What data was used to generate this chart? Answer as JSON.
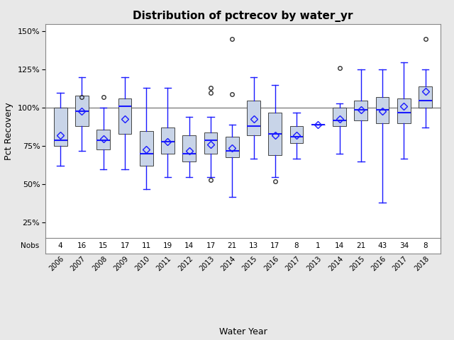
{
  "title": "Distribution of pctrecov by water_yr",
  "xlabel": "Water Year",
  "ylabel": "Pct Recovery",
  "ylim": [
    15,
    155
  ],
  "yticks": [
    25,
    50,
    75,
    100,
    125,
    150
  ],
  "ytick_labels": [
    "25%",
    "50%",
    "75%",
    "100%",
    "125%",
    "150%"
  ],
  "ref_line": 100,
  "background_color": "#e8e8e8",
  "plot_bg": "#ffffff",
  "box_fill": "#c8d4e8",
  "box_edge": "#444444",
  "whisker_color": "#1a1aff",
  "median_color": "#1a1aff",
  "mean_color": "#1a1aff",
  "outlier_color": "#333333",
  "groups": [
    {
      "label": "2006",
      "nobs": 4,
      "q1": 75,
      "median": 79,
      "q3": 100,
      "mean": 82,
      "whislo": 62,
      "whishi": 110,
      "fliers": []
    },
    {
      "label": "2007",
      "nobs": 16,
      "q1": 88,
      "median": 98,
      "q3": 108,
      "mean": 98,
      "whislo": 72,
      "whishi": 120,
      "fliers": [
        107
      ]
    },
    {
      "label": "2008",
      "nobs": 15,
      "q1": 73,
      "median": 79,
      "q3": 86,
      "mean": 80,
      "whislo": 60,
      "whishi": 100,
      "fliers": [
        107
      ]
    },
    {
      "label": "2009",
      "nobs": 17,
      "q1": 83,
      "median": 101,
      "q3": 106,
      "mean": 93,
      "whislo": 60,
      "whishi": 120,
      "fliers": []
    },
    {
      "label": "2010",
      "nobs": 11,
      "q1": 62,
      "median": 70,
      "q3": 85,
      "mean": 73,
      "whislo": 47,
      "whishi": 113,
      "fliers": []
    },
    {
      "label": "2011",
      "nobs": 19,
      "q1": 70,
      "median": 78,
      "q3": 87,
      "mean": 78,
      "whislo": 55,
      "whishi": 113,
      "fliers": []
    },
    {
      "label": "2012",
      "nobs": 14,
      "q1": 65,
      "median": 70,
      "q3": 82,
      "mean": 72,
      "whislo": 55,
      "whishi": 94,
      "fliers": []
    },
    {
      "label": "2013",
      "nobs": 17,
      "q1": 70,
      "median": 79,
      "q3": 84,
      "mean": 76,
      "whislo": 55,
      "whishi": 94,
      "fliers": [
        53,
        110,
        113
      ]
    },
    {
      "label": "2014",
      "nobs": 21,
      "q1": 68,
      "median": 72,
      "q3": 81,
      "mean": 74,
      "whislo": 42,
      "whishi": 89,
      "fliers": [
        109,
        145
      ]
    },
    {
      "label": "2015",
      "nobs": 13,
      "q1": 82,
      "median": 88,
      "q3": 105,
      "mean": 93,
      "whislo": 67,
      "whishi": 120,
      "fliers": []
    },
    {
      "label": "2016",
      "nobs": 17,
      "q1": 69,
      "median": 83,
      "q3": 97,
      "mean": 82,
      "whislo": 55,
      "whishi": 115,
      "fliers": [
        52
      ]
    },
    {
      "label": "2017",
      "nobs": 8,
      "q1": 77,
      "median": 81,
      "q3": 88,
      "mean": 82,
      "whislo": 67,
      "whishi": 97,
      "fliers": []
    },
    {
      "label": "2013",
      "nobs": 1,
      "q1": 89,
      "median": 89,
      "q3": 89,
      "mean": 89,
      "whislo": 89,
      "whishi": 89,
      "fliers": []
    },
    {
      "label": "2014",
      "nobs": 14,
      "q1": 88,
      "median": 92,
      "q3": 100,
      "mean": 93,
      "whislo": 70,
      "whishi": 103,
      "fliers": [
        126
      ]
    },
    {
      "label": "2015",
      "nobs": 21,
      "q1": 92,
      "median": 99,
      "q3": 105,
      "mean": 99,
      "whislo": 65,
      "whishi": 125,
      "fliers": []
    },
    {
      "label": "2016",
      "nobs": 43,
      "q1": 90,
      "median": 99,
      "q3": 107,
      "mean": 98,
      "whislo": 38,
      "whishi": 125,
      "fliers": []
    },
    {
      "label": "2017",
      "nobs": 34,
      "q1": 90,
      "median": 97,
      "q3": 106,
      "mean": 101,
      "whislo": 67,
      "whishi": 130,
      "fliers": []
    },
    {
      "label": "2018",
      "nobs": 8,
      "q1": 100,
      "median": 105,
      "q3": 114,
      "mean": 111,
      "whislo": 87,
      "whishi": 125,
      "fliers": [
        145
      ]
    }
  ]
}
